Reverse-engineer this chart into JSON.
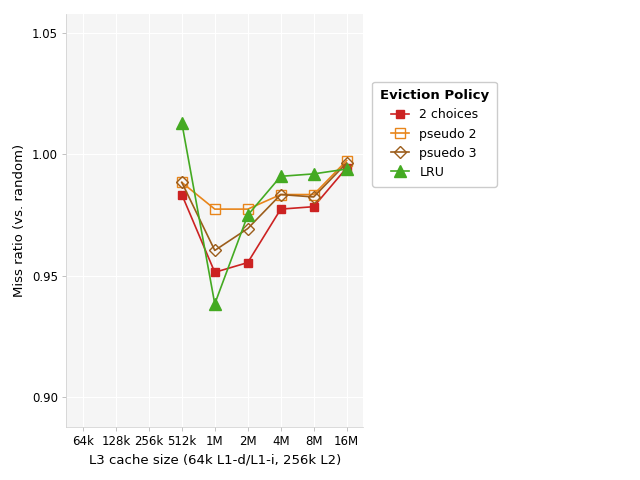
{
  "x_labels": [
    "64k",
    "128k",
    "256k",
    "512k",
    "1M",
    "2M",
    "4M",
    "8M",
    "16M"
  ],
  "x_positions": [
    0,
    1,
    2,
    3,
    4,
    5,
    6,
    7,
    8
  ],
  "series_order": [
    "2 choices",
    "pseudo 2",
    "psuedo 3",
    "LRU"
  ],
  "series": {
    "2 choices": {
      "x_idx": [
        3,
        4,
        5,
        6,
        7,
        8
      ],
      "y": [
        0.9835,
        0.9515,
        0.9555,
        0.9775,
        0.9785,
        0.9945
      ],
      "color": "#CC2222",
      "marker": "s",
      "marker_facecolor": "#CC2222",
      "linewidth": 1.2,
      "markersize": 6
    },
    "pseudo 2": {
      "x_idx": [
        3,
        4,
        5,
        6,
        7,
        8
      ],
      "y": [
        0.9885,
        0.9775,
        0.9775,
        0.9835,
        0.9835,
        0.9975
      ],
      "color": "#E8851A",
      "marker": "s",
      "marker_facecolor": "none",
      "linewidth": 1.2,
      "markersize": 7
    },
    "psuedo 3": {
      "x_idx": [
        3,
        4,
        5,
        6,
        7,
        8
      ],
      "y": [
        0.9885,
        0.9605,
        0.9695,
        0.9835,
        0.9825,
        0.9965
      ],
      "color": "#9B5C1A",
      "marker": "D",
      "marker_facecolor": "none",
      "linewidth": 1.2,
      "markersize": 6
    },
    "LRU": {
      "x_idx": [
        3,
        4,
        5,
        6,
        7,
        8
      ],
      "y": [
        1.013,
        0.9385,
        0.975,
        0.991,
        0.992,
        0.994
      ],
      "color": "#44AA22",
      "marker": "^",
      "marker_facecolor": "#44AA22",
      "linewidth": 1.2,
      "markersize": 8
    }
  },
  "xlabel": "L3 cache size (64k L1-d/L1-i, 256k L2)",
  "ylabel": "Miss ratio (vs. random)",
  "legend_title": "Eviction Policy",
  "ylim": [
    0.888,
    1.058
  ],
  "yticks": [
    0.9,
    0.95,
    1.0,
    1.05
  ],
  "background_color": "#ffffff",
  "panel_background": "#f5f5f5",
  "grid_color": "#ffffff",
  "tick_fontsize": 8.5,
  "axis_fontsize": 9.5,
  "legend_fontsize": 9,
  "legend_title_fontsize": 9.5
}
